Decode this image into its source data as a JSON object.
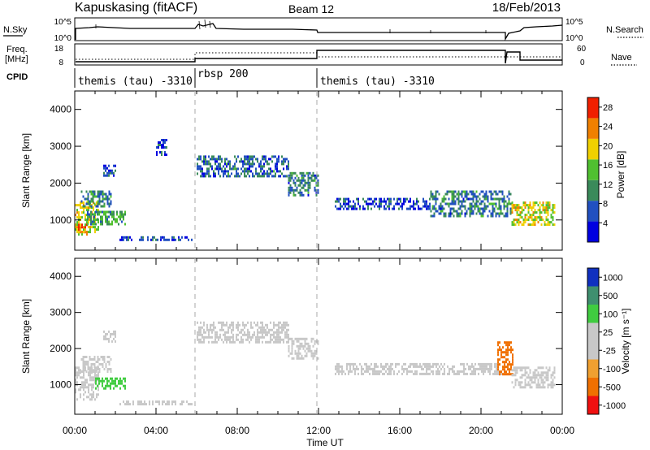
{
  "header": {
    "station": "Kapuskasing (fitACF)",
    "beam": "Beam 12",
    "date": "18/Feb/2013"
  },
  "sky_panel": {
    "left_label": "N.Sky",
    "right_label": "N.Search",
    "left_ticks": [
      "10^5",
      "10^0"
    ],
    "right_ticks": [
      "10^5",
      "10^0"
    ]
  },
  "freq_panel": {
    "left_label_1": "Freq.",
    "left_label_2": "[MHz]",
    "right_label": "Nave",
    "left_ticks": [
      "18",
      "8"
    ],
    "right_ticks": [
      "60",
      "0"
    ]
  },
  "cpid": {
    "label": "CPID",
    "segments": [
      {
        "name": "themis (tau) -3310",
        "start_h": 0,
        "end_h": 6
      },
      {
        "name": "rbsp 200",
        "start_h": 6,
        "end_h": 12
      },
      {
        "name": "themis (tau) -3310",
        "start_h": 12,
        "end_h": 24
      }
    ]
  },
  "time_axis": {
    "label": "Time UT",
    "ticks": [
      "00:00",
      "04:00",
      "08:00",
      "12:00",
      "16:00",
      "20:00",
      "00:00"
    ],
    "tick_hours": [
      0,
      4,
      8,
      12,
      16,
      20,
      24
    ]
  },
  "range_axis": {
    "label": "Slant Range [km]",
    "ticks": [
      "1000",
      "2000",
      "3000",
      "4000"
    ],
    "tick_values": [
      1000,
      2000,
      3000,
      4000
    ],
    "ylim": [
      180,
      4500
    ]
  },
  "power_scale": {
    "label": "Power [dB]",
    "ticks": [
      "4",
      "8",
      "12",
      "16",
      "20",
      "24",
      "28"
    ],
    "tick_values": [
      4,
      8,
      12,
      16,
      20,
      24,
      28
    ],
    "range": [
      0,
      30
    ],
    "colors": [
      "#0000e0",
      "#2150c0",
      "#3a8a5a",
      "#50c030",
      "#f0d000",
      "#f08000",
      "#f02000"
    ]
  },
  "velocity_scale": {
    "label": "Velocity [m s⁻¹]",
    "ticks": [
      "1000",
      "500",
      "100",
      "25",
      "-25",
      "-100",
      "-500",
      "-1000"
    ],
    "colors": [
      "#1030c0",
      "#3f8f6f",
      "#40cc40",
      "#c8c8c8",
      "#c8c8c8",
      "#f0a030",
      "#f07000",
      "#f01010"
    ]
  },
  "chart_data": {
    "type": "heatmap",
    "x_unit": "hours UT",
    "y_unit": "km",
    "xlim": [
      0,
      24
    ],
    "ylim": [
      180,
      4500
    ],
    "power_regions": [
      {
        "x": [
          0.0,
          1.2
        ],
        "y": [
          600,
          1500
        ],
        "power": 18
      },
      {
        "x": [
          0.0,
          0.6
        ],
        "y": [
          650,
          900
        ],
        "power": 26
      },
      {
        "x": [
          0.6,
          2.5
        ],
        "y": [
          900,
          1250
        ],
        "power": 12
      },
      {
        "x": [
          0.3,
          1.8
        ],
        "y": [
          1350,
          1800
        ],
        "power": 10
      },
      {
        "x": [
          1.4,
          2.0
        ],
        "y": [
          2200,
          2500
        ],
        "power": 6
      },
      {
        "x": [
          2.2,
          5.8
        ],
        "y": [
          440,
          560
        ],
        "power": 6
      },
      {
        "x": [
          4.0,
          4.5
        ],
        "y": [
          2800,
          3200
        ],
        "power": 5
      },
      {
        "x": [
          6.0,
          10.5
        ],
        "y": [
          2200,
          2750
        ],
        "power": 8
      },
      {
        "x": [
          10.5,
          12.0
        ],
        "y": [
          1700,
          2300
        ],
        "power": 9
      },
      {
        "x": [
          12.8,
          17.5
        ],
        "y": [
          1300,
          1600
        ],
        "power": 5
      },
      {
        "x": [
          17.5,
          21.5
        ],
        "y": [
          1100,
          1800
        ],
        "power": 9
      },
      {
        "x": [
          21.5,
          23.6
        ],
        "y": [
          900,
          1500
        ],
        "power": 18
      }
    ],
    "velocity_regions": [
      {
        "x": [
          0.0,
          1.2
        ],
        "y": [
          600,
          1500
        ],
        "velocity": 10
      },
      {
        "x": [
          1.0,
          2.5
        ],
        "y": [
          900,
          1200
        ],
        "velocity": 60
      },
      {
        "x": [
          0.3,
          1.8
        ],
        "y": [
          1350,
          1800
        ],
        "velocity": 5
      },
      {
        "x": [
          1.4,
          2.0
        ],
        "y": [
          2200,
          2500
        ],
        "velocity": 0
      },
      {
        "x": [
          2.2,
          5.8
        ],
        "y": [
          440,
          560
        ],
        "velocity": 0
      },
      {
        "x": [
          6.0,
          10.5
        ],
        "y": [
          2200,
          2750
        ],
        "velocity": 0
      },
      {
        "x": [
          10.5,
          12.0
        ],
        "y": [
          1700,
          2300
        ],
        "velocity": 0
      },
      {
        "x": [
          12.8,
          21.0
        ],
        "y": [
          1300,
          1600
        ],
        "velocity": 0
      },
      {
        "x": [
          20.8,
          21.6
        ],
        "y": [
          1300,
          2200
        ],
        "velocity": -300
      },
      {
        "x": [
          21.5,
          23.6
        ],
        "y": [
          900,
          1500
        ],
        "velocity": -10
      }
    ]
  }
}
